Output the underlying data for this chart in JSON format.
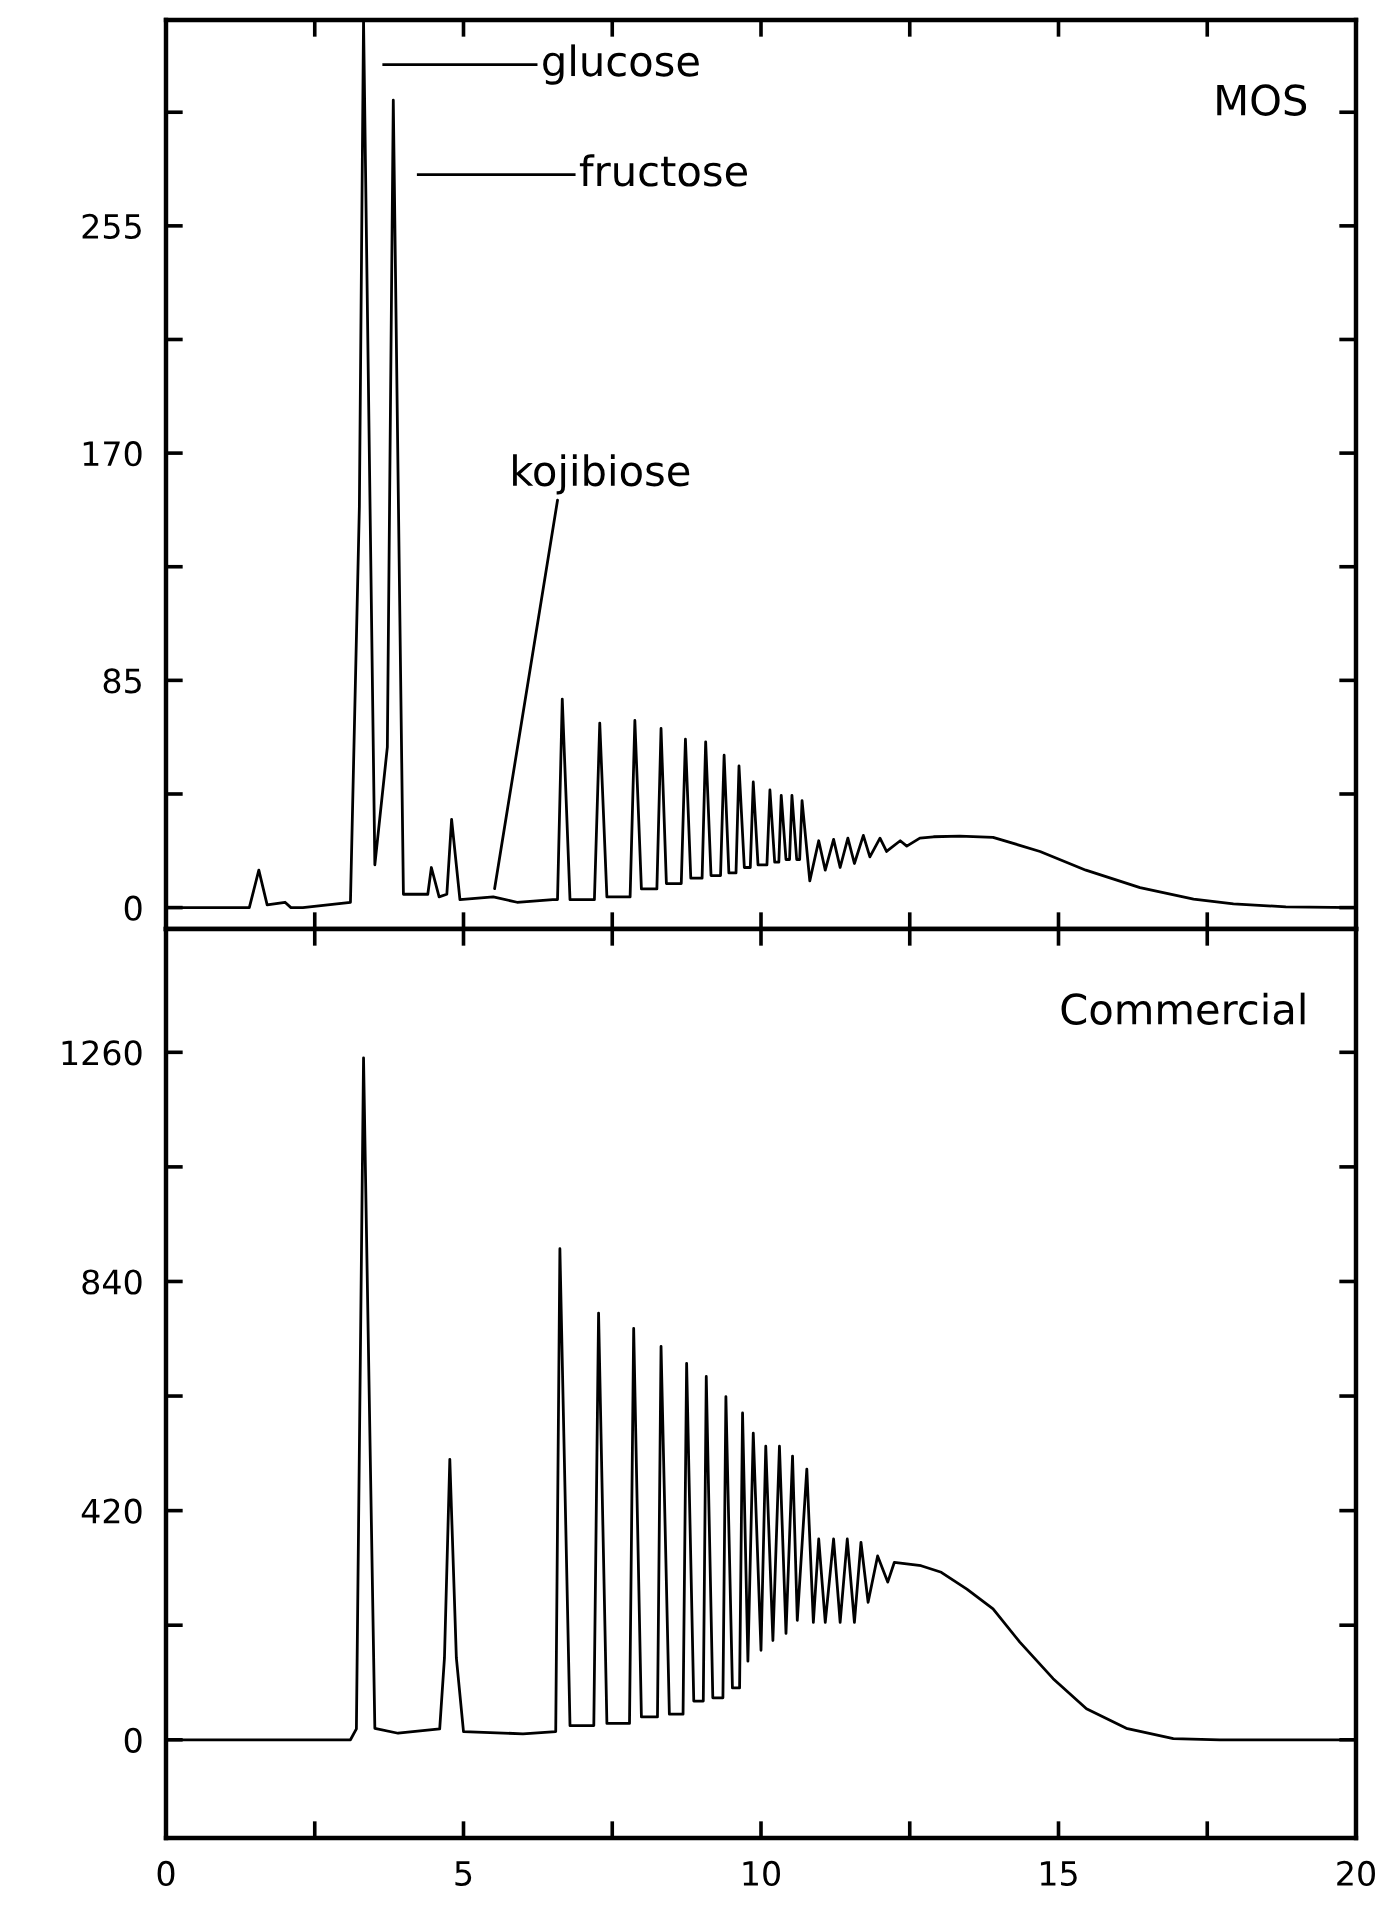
{
  "chart_data": [
    {
      "type": "line",
      "xlim": [
        0,
        20
      ],
      "ylim": [
        -8,
        332
      ],
      "tick_labels": "y",
      "xticks": [
        {
          "value": 0,
          "label": null
        },
        {
          "value": 2.5,
          "label": null
        },
        {
          "value": 5,
          "label": null
        },
        {
          "value": 7.5,
          "label": null
        },
        {
          "value": 10,
          "label": null
        },
        {
          "value": 12.5,
          "label": null
        },
        {
          "value": 15,
          "label": null
        },
        {
          "value": 17.5,
          "label": null
        },
        {
          "value": 20,
          "label": null
        }
      ],
      "yticks": [
        0,
        {
          "value": 42.5,
          "label": null
        },
        85,
        {
          "value": 127.5,
          "label": null
        },
        170,
        {
          "value": 212.5,
          "label": null
        },
        255,
        {
          "value": 297.5,
          "label": null
        }
      ],
      "series": [
        {
          "color": "#000000",
          "x": [
            0,
            1.4,
            1.56,
            1.7,
            2.0,
            2.1,
            2.3,
            3.1,
            3.25,
            3.32,
            3.51,
            3.72,
            3.82,
            3.99,
            4.4,
            4.46,
            4.59,
            4.72,
            4.8,
            4.94,
            5.5,
            5.9,
            6.5,
            6.58,
            6.66,
            6.79,
            7.2,
            7.29,
            7.41,
            7.8,
            7.88,
            7.99,
            8.25,
            8.32,
            8.41,
            8.66,
            8.73,
            8.82,
            9.01,
            9.07,
            9.16,
            9.32,
            9.38,
            9.46,
            9.58,
            9.63,
            9.72,
            9.82,
            9.87,
            9.95,
            10.1,
            10.15,
            10.23,
            10.3,
            10.34,
            10.42,
            10.48,
            10.52,
            10.6,
            10.65,
            10.69,
            10.82,
            10.97,
            11.08,
            11.22,
            11.33,
            11.46,
            11.57,
            11.72,
            11.83,
            12.0,
            12.11,
            12.34,
            12.45,
            12.67,
            12.9,
            13.34,
            13.9,
            14.69,
            15.46,
            16.37,
            17.27,
            17.94,
            18.82,
            20
          ],
          "values": [
            0,
            0,
            14,
            1,
            2,
            0,
            0,
            2,
            150,
            332,
            16,
            60,
            302,
            5,
            5,
            15,
            4,
            5,
            33,
            3,
            4,
            2,
            3,
            3,
            78,
            3,
            3,
            69,
            4,
            4,
            70,
            7,
            7,
            67,
            9,
            9,
            63,
            11,
            11,
            62,
            12,
            12,
            57,
            13,
            13,
            53,
            15,
            15,
            47,
            16,
            16,
            44,
            17,
            17,
            42,
            18,
            18,
            42,
            18,
            18,
            40,
            10,
            25,
            14,
            25.5,
            15,
            26,
            16.5,
            27,
            19,
            26,
            21,
            25,
            23,
            26,
            26.5,
            26.7,
            26.3,
            21,
            14,
            7.5,
            3.2,
            1.4,
            0.3,
            0
          ]
        }
      ],
      "annotations": [
        "glucose",
        "fructose",
        {
          "text": "kojibiose",
          "x": 5.5,
          "y": 4
        },
        "MOS"
      ]
    },
    {
      "type": "line",
      "xlim": [
        0,
        20
      ],
      "ylim": [
        -180,
        1486
      ],
      "xticks": [
        0,
        {
          "value": 2.5,
          "label": null
        },
        5,
        {
          "value": 7.5,
          "label": null
        },
        10,
        {
          "value": 12.5,
          "label": null
        },
        15,
        {
          "value": 17.5,
          "label": null
        },
        20
      ],
      "yticks": [
        0,
        {
          "value": 210,
          "label": null
        },
        420,
        {
          "value": 630,
          "label": null
        },
        840,
        {
          "value": 1050,
          "label": null
        },
        1260
      ],
      "series": [
        {
          "color": "#000000",
          "x": [
            0,
            3.1,
            3.2,
            3.32,
            3.51,
            3.9,
            4.6,
            4.68,
            4.77,
            4.88,
            5.0,
            6.0,
            6.55,
            6.62,
            6.79,
            7.19,
            7.27,
            7.41,
            7.79,
            7.86,
            7.99,
            8.26,
            8.32,
            8.46,
            8.69,
            8.75,
            8.87,
            9.03,
            9.08,
            9.19,
            9.36,
            9.41,
            9.52,
            9.64,
            9.69,
            9.78,
            9.87,
            10.0,
            10.08,
            10.2,
            10.31,
            10.42,
            10.53,
            10.61,
            10.77,
            10.88,
            10.97,
            11.08,
            11.22,
            11.33,
            11.45,
            11.57,
            11.68,
            11.8,
            11.96,
            12.13,
            12.24,
            12.69,
            13.03,
            13.46,
            13.9,
            14.35,
            14.91,
            15.47,
            16.14,
            16.93,
            17.71,
            18.6,
            20
          ],
          "values": [
            0,
            0,
            20,
            1250,
            21,
            12,
            20,
            150,
            514,
            150,
            15,
            11,
            15,
            900,
            26,
            26,
            782,
            30,
            30,
            754,
            42,
            42,
            721,
            47,
            47,
            690,
            71,
            71,
            666,
            77,
            77,
            629,
            95,
            95,
            599,
            144,
            562,
            164,
            538,
            182,
            538,
            195,
            520,
            219,
            496,
            215,
            368,
            215,
            368,
            215,
            368,
            215,
            362,
            252,
            337,
            289,
            325,
            319,
            307,
            276,
            240,
            179,
            112,
            57,
            21,
            2,
            0,
            0,
            0
          ]
        }
      ],
      "annotations": [
        "Commercial"
      ]
    }
  ]
}
